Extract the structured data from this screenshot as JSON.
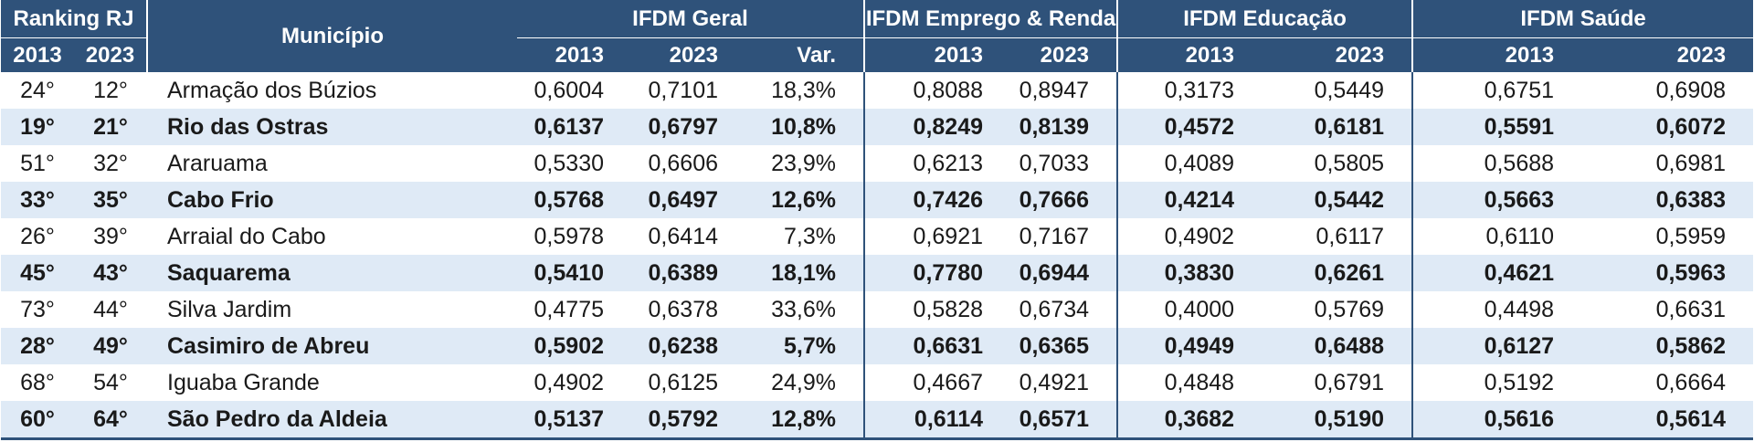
{
  "headers": {
    "ranking": "Ranking RJ",
    "municipio": "Município",
    "geral": "IFDM Geral",
    "emprego": "IFDM Emprego & Renda",
    "educacao": "IFDM Educação",
    "saude": "IFDM Saúde",
    "y2013": "2013",
    "y2023": "2023",
    "var": "Var."
  },
  "rows": [
    {
      "r2013": "24°",
      "r2023": "12°",
      "name": "Armação dos Búzios",
      "g13": "0,6004",
      "g23": "0,7101",
      "var": "18,3%",
      "e13": "0,8088",
      "e23": "0,8947",
      "ed13": "0,3173",
      "ed23": "0,5449",
      "s13": "0,6751",
      "s23": "0,6908"
    },
    {
      "r2013": "19°",
      "r2023": "21°",
      "name": "Rio das Ostras",
      "g13": "0,6137",
      "g23": "0,6797",
      "var": "10,8%",
      "e13": "0,8249",
      "e23": "0,8139",
      "ed13": "0,4572",
      "ed23": "0,6181",
      "s13": "0,5591",
      "s23": "0,6072"
    },
    {
      "r2013": "51°",
      "r2023": "32°",
      "name": "Araruama",
      "g13": "0,5330",
      "g23": "0,6606",
      "var": "23,9%",
      "e13": "0,6213",
      "e23": "0,7033",
      "ed13": "0,4089",
      "ed23": "0,5805",
      "s13": "0,5688",
      "s23": "0,6981"
    },
    {
      "r2013": "33°",
      "r2023": "35°",
      "name": "Cabo Frio",
      "g13": "0,5768",
      "g23": "0,6497",
      "var": "12,6%",
      "e13": "0,7426",
      "e23": "0,7666",
      "ed13": "0,4214",
      "ed23": "0,5442",
      "s13": "0,5663",
      "s23": "0,6383"
    },
    {
      "r2013": "26°",
      "r2023": "39°",
      "name": "Arraial do Cabo",
      "g13": "0,5978",
      "g23": "0,6414",
      "var": "7,3%",
      "e13": "0,6921",
      "e23": "0,7167",
      "ed13": "0,4902",
      "ed23": "0,6117",
      "s13": "0,6110",
      "s23": "0,5959"
    },
    {
      "r2013": "45°",
      "r2023": "43°",
      "name": "Saquarema",
      "g13": "0,5410",
      "g23": "0,6389",
      "var": "18,1%",
      "e13": "0,7780",
      "e23": "0,6944",
      "ed13": "0,3830",
      "ed23": "0,6261",
      "s13": "0,4621",
      "s23": "0,5963"
    },
    {
      "r2013": "73°",
      "r2023": "44°",
      "name": "Silva Jardim",
      "g13": "0,4775",
      "g23": "0,6378",
      "var": "33,6%",
      "e13": "0,5828",
      "e23": "0,6734",
      "ed13": "0,4000",
      "ed23": "0,5769",
      "s13": "0,4498",
      "s23": "0,6631"
    },
    {
      "r2013": "28°",
      "r2023": "49°",
      "name": "Casimiro de Abreu",
      "g13": "0,5902",
      "g23": "0,6238",
      "var": "5,7%",
      "e13": "0,6631",
      "e23": "0,6365",
      "ed13": "0,4949",
      "ed23": "0,6488",
      "s13": "0,6127",
      "s23": "0,5862"
    },
    {
      "r2013": "68°",
      "r2023": "54°",
      "name": "Iguaba Grande",
      "g13": "0,4902",
      "g23": "0,6125",
      "var": "24,9%",
      "e13": "0,4667",
      "e23": "0,4921",
      "ed13": "0,4848",
      "ed23": "0,6791",
      "s13": "0,5192",
      "s23": "0,6664"
    },
    {
      "r2013": "60°",
      "r2023": "64°",
      "name": "São Pedro da Aldeia",
      "g13": "0,5137",
      "g23": "0,5792",
      "var": "12,8%",
      "e13": "0,6114",
      "e23": "0,6571",
      "ed13": "0,3682",
      "ed23": "0,5190",
      "s13": "0,5616",
      "s23": "0,5614"
    }
  ]
}
